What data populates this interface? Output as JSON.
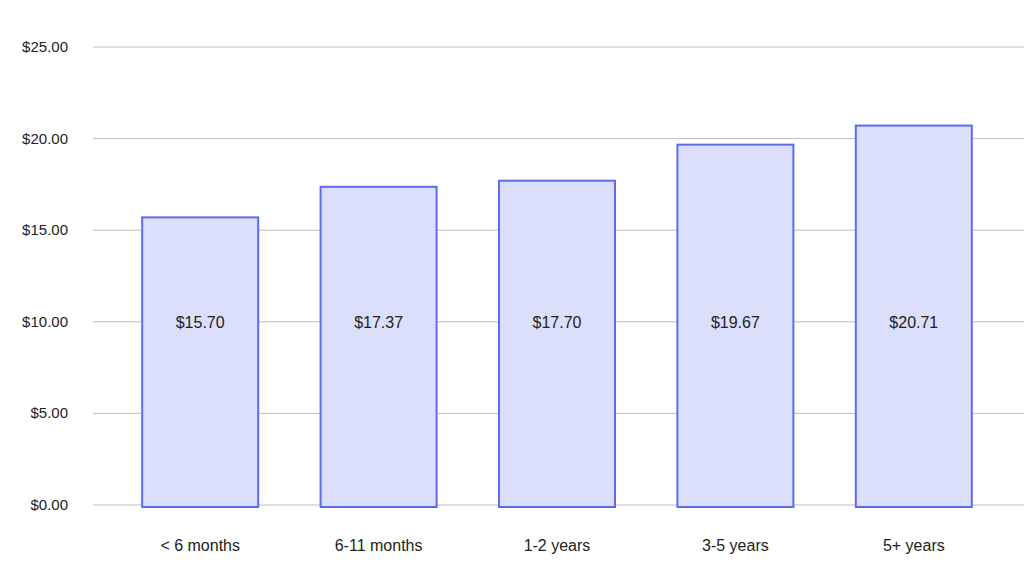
{
  "chart_data": {
    "type": "bar",
    "categories": [
      "< 6 months",
      "6-11 months",
      "1-2 years",
      "3-5 years",
      "5+ years"
    ],
    "values": [
      15.7,
      17.37,
      17.7,
      19.67,
      20.71
    ],
    "value_labels": [
      "$15.70",
      "$17.37",
      "$17.70",
      "$19.67",
      "$20.71"
    ],
    "data_labels": true,
    "color": "#5b6cf0",
    "ylim": [
      0,
      25
    ],
    "yticks": [
      {
        "value": 0,
        "label": "$0.00"
      },
      {
        "value": 5,
        "label": "$5.00"
      },
      {
        "value": 10,
        "label": "$10.00"
      },
      {
        "value": 15,
        "label": "$15.00"
      },
      {
        "value": 20,
        "label": "$20.00"
      },
      {
        "value": 25,
        "label": "$25.00"
      }
    ],
    "grid": true
  }
}
